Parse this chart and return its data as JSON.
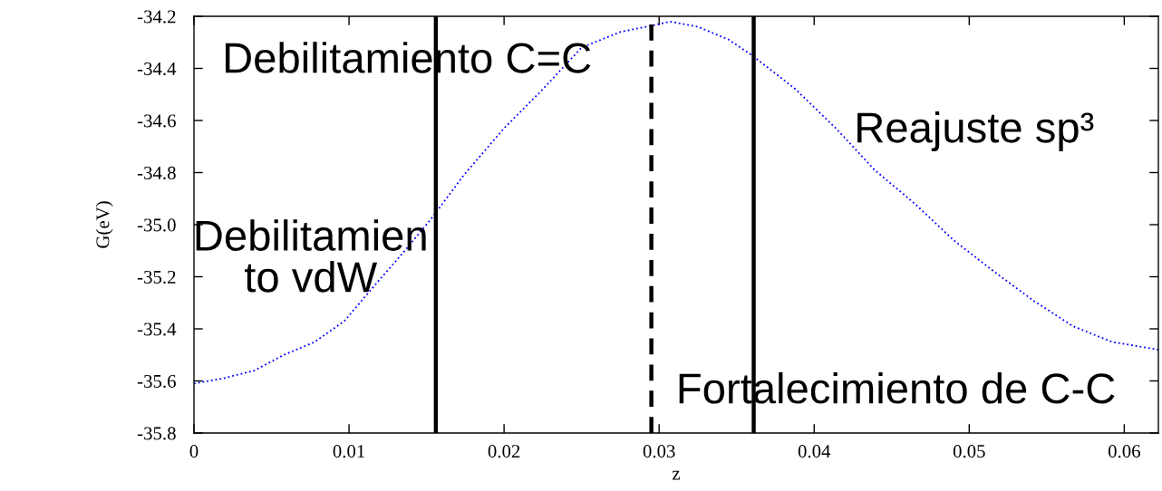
{
  "chart_data": {
    "type": "line",
    "xlabel": "z",
    "ylabel": "G(eV)",
    "x": [
      0,
      0.0019,
      0.0039,
      0.0058,
      0.0078,
      0.0097,
      0.0117,
      0.0136,
      0.0154,
      0.0174,
      0.02,
      0.0225,
      0.025,
      0.0275,
      0.03,
      0.0307,
      0.0325,
      0.0345,
      0.036,
      0.0388,
      0.0414,
      0.0439,
      0.0465,
      0.049,
      0.0516,
      0.0541,
      0.0567,
      0.0592,
      0.0622
    ],
    "series": [
      {
        "color": "#0000ff",
        "values": [
          -35.61,
          -35.59,
          -35.56,
          -35.5,
          -35.45,
          -35.37,
          -35.23,
          -35.1,
          -34.97,
          -34.81,
          -34.63,
          -34.48,
          -34.32,
          -34.26,
          -34.23,
          -34.22,
          -34.24,
          -34.29,
          -34.35,
          -34.48,
          -34.63,
          -34.79,
          -34.92,
          -35.06,
          -35.18,
          -35.29,
          -35.39,
          -35.45,
          -35.48
        ]
      }
    ],
    "line_style": "dotted",
    "marker": "none",
    "grid": false,
    "xlim": [
      0,
      0.0622
    ],
    "xticks": [
      0,
      0.01,
      0.02,
      0.03,
      0.04,
      0.05,
      0.06
    ],
    "ylim": [
      -35.8,
      -34.2
    ],
    "yticks": [
      -35.8,
      -35.6,
      -35.4,
      -35.2,
      {
        "value": -35.0,
        "label": "-35.0"
      },
      -34.8,
      -34.6,
      -34.4,
      -34.2
    ],
    "ref_lines": [
      {
        "axis": "x",
        "value": 0.0156,
        "color": "#000000",
        "line_style": "solid"
      },
      {
        "axis": "x",
        "value": 0.0295,
        "color": "#000000",
        "line_style": "dashed"
      },
      {
        "axis": "x",
        "value": 0.0361,
        "color": "#000000",
        "line_style": "solid"
      }
    ],
    "annotations": [
      "Debilitamiento C=C",
      "Debilitamien\nto vdW",
      "Reajuste sp³",
      "Fortalecimiento de C-C"
    ]
  }
}
